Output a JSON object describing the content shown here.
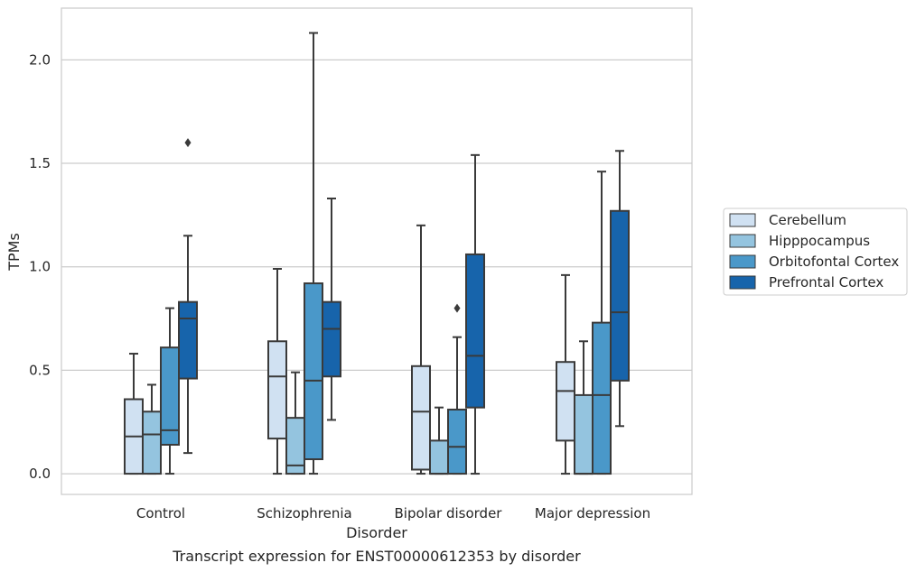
{
  "chart_data": {
    "type": "box",
    "title": "",
    "caption": "Transcript expression for ENST00000612353 by disorder",
    "xlabel": "Disorder",
    "ylabel": "TPMs",
    "ylim": [
      -0.1,
      2.25
    ],
    "yticks": [
      "0.0",
      "0.5",
      "1.0",
      "1.5",
      "2.0"
    ],
    "grid": "horizontal",
    "legend_placement": "right",
    "categories": [
      "Control",
      "Schizophrenia",
      "Bipolar disorder",
      "Major depression"
    ],
    "series": [
      {
        "name": "Cerebellum",
        "color": "#d0e1f2",
        "boxes": [
          {
            "min": 0.0,
            "q1": 0.0,
            "median": 0.18,
            "q3": 0.36,
            "max": 0.58,
            "outliers": []
          },
          {
            "min": 0.0,
            "q1": 0.17,
            "median": 0.47,
            "q3": 0.64,
            "max": 0.99,
            "outliers": []
          },
          {
            "min": 0.0,
            "q1": 0.02,
            "median": 0.3,
            "q3": 0.52,
            "max": 1.2,
            "outliers": []
          },
          {
            "min": 0.0,
            "q1": 0.16,
            "median": 0.4,
            "q3": 0.54,
            "max": 0.96,
            "outliers": []
          }
        ]
      },
      {
        "name": "Hipppocampus",
        "color": "#94c4df",
        "boxes": [
          {
            "min": 0.0,
            "q1": 0.0,
            "median": 0.19,
            "q3": 0.3,
            "max": 0.43,
            "outliers": []
          },
          {
            "min": 0.0,
            "q1": 0.0,
            "median": 0.04,
            "q3": 0.27,
            "max": 0.49,
            "outliers": []
          },
          {
            "min": 0.0,
            "q1": 0.0,
            "median": 0.0,
            "q3": 0.16,
            "max": 0.32,
            "outliers": []
          },
          {
            "min": 0.0,
            "q1": 0.0,
            "median": 0.0,
            "q3": 0.38,
            "max": 0.64,
            "outliers": []
          }
        ]
      },
      {
        "name": "Orbitofontal Cortex",
        "color": "#4a98c9",
        "boxes": [
          {
            "min": 0.0,
            "q1": 0.14,
            "median": 0.21,
            "q3": 0.61,
            "max": 0.8,
            "outliers": []
          },
          {
            "min": 0.0,
            "q1": 0.07,
            "median": 0.45,
            "q3": 0.92,
            "max": 2.13,
            "outliers": []
          },
          {
            "min": 0.0,
            "q1": 0.0,
            "median": 0.13,
            "q3": 0.31,
            "max": 0.66,
            "outliers": [
              0.8
            ]
          },
          {
            "min": 0.0,
            "q1": 0.0,
            "median": 0.38,
            "q3": 0.73,
            "max": 1.46,
            "outliers": []
          }
        ]
      },
      {
        "name": "Prefrontal Cortex",
        "color": "#1764ab",
        "boxes": [
          {
            "min": 0.1,
            "q1": 0.46,
            "median": 0.75,
            "q3": 0.83,
            "max": 1.15,
            "outliers": [
              1.6
            ]
          },
          {
            "min": 0.26,
            "q1": 0.47,
            "median": 0.7,
            "q3": 0.83,
            "max": 1.33,
            "outliers": []
          },
          {
            "min": 0.0,
            "q1": 0.32,
            "median": 0.57,
            "q3": 1.06,
            "max": 1.54,
            "outliers": []
          },
          {
            "min": 0.23,
            "q1": 0.45,
            "median": 0.78,
            "q3": 1.27,
            "max": 1.56,
            "outliers": []
          }
        ]
      }
    ]
  }
}
